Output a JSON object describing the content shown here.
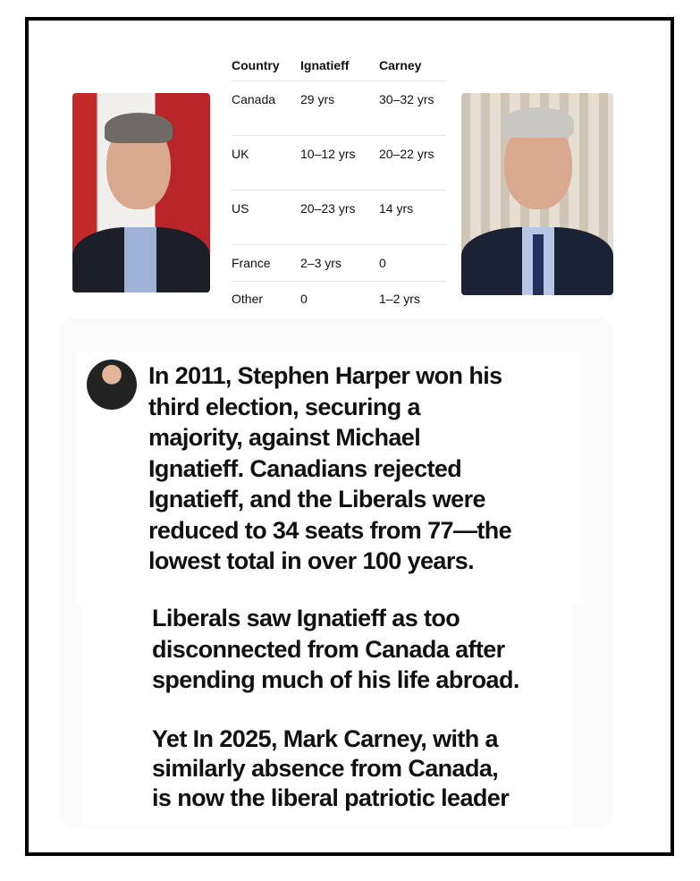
{
  "table": {
    "headers": [
      "Country",
      "Ignatieff",
      "Carney"
    ],
    "rows": [
      [
        "Canada",
        "29 yrs",
        "30–32 yrs"
      ],
      [
        "UK",
        "10–12 yrs",
        "20–22 yrs"
      ],
      [
        "US",
        "20–23 yrs",
        "14 yrs"
      ],
      [
        "France",
        "2–3 yrs",
        "0"
      ],
      [
        "Other",
        "0",
        "1–2 yrs"
      ]
    ]
  },
  "post": {
    "lines": [
      "In 2011, Stephen Harper won his",
      "third election, securing a",
      "majority, against Michael",
      "Ignatieff. Canadians rejected",
      "Ignatieff, and the Liberals were",
      "reduced to 34 seats from 77—the",
      "lowest total in over 100 years."
    ]
  },
  "caption": {
    "paragraph1": [
      "Liberals saw Ignatieff  as too",
      "disconnected from Canada after",
      "spending much of his life abroad."
    ],
    "paragraph2": [
      "Yet In 2025, Mark Carney, with a",
      "similarly absence from Canada,",
      "is now the liberal patriotic leader"
    ]
  }
}
